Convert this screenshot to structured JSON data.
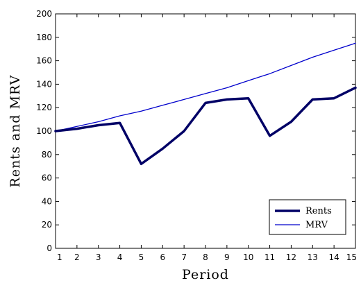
{
  "chart_data": {
    "type": "line",
    "title": "",
    "xlabel": "Period",
    "ylabel": "Rents and MRV",
    "x": [
      1,
      2,
      3,
      4,
      5,
      6,
      7,
      8,
      9,
      10,
      11,
      12,
      13,
      14,
      15
    ],
    "xlim": [
      1,
      15
    ],
    "ylim": [
      0,
      200
    ],
    "yticks": [
      0,
      20,
      40,
      60,
      80,
      100,
      120,
      140,
      160,
      180,
      200
    ],
    "grid": false,
    "legend_position": "bottom-right",
    "series": [
      {
        "name": "Rents",
        "color": "#000066",
        "style": "thick",
        "values": [
          100,
          102,
          105,
          107,
          72,
          85,
          100,
          124,
          127,
          128,
          96,
          108,
          127,
          128,
          137
        ]
      },
      {
        "name": "MRV",
        "color": "#0000cc",
        "style": "thin",
        "values": [
          100,
          104,
          108,
          113,
          117,
          122,
          127,
          132,
          137,
          143,
          149,
          156,
          163,
          169,
          175
        ]
      }
    ]
  }
}
